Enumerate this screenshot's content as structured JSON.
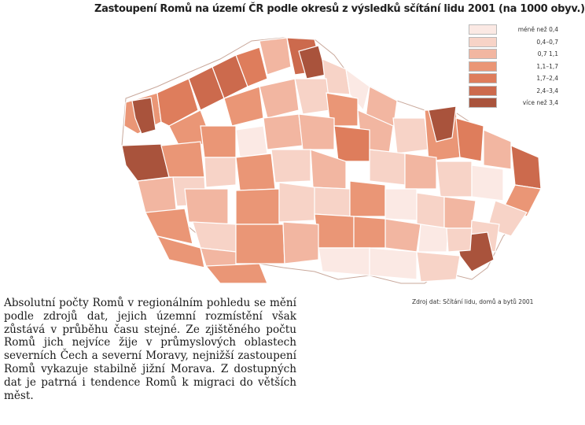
{
  "title": "Zastoupení Romů na území ČR podle okresů z výsledků sčítání lidu 2001 (na 1000 obyv.)",
  "legend": [
    {
      "label": "méně než 0,4",
      "color": "#fbe9e4"
    },
    {
      "label": "0,4–0,7",
      "color": "#f7d3c7"
    },
    {
      "label": "0,7  1,1",
      "color": "#f2b6a1"
    },
    {
      "label": "1,1–1,7",
      "color": "#ea9676"
    },
    {
      "label": "1,7–2,4",
      "color": "#de7d5c"
    },
    {
      "label": "2,4–3,4",
      "color": "#cc6a4d"
    },
    {
      "label": "více než 3,4",
      "color": "#a9533c"
    }
  ],
  "source": "Zdroj dat: Sčítání lidu, domů a bytů 2001",
  "text": "Absolutní počty Romů v regionálním pohledu se mění podle zdrojů dat, jejich územní rozmístění však zůstává v průběhu času stejné. Ze zjištěného počtu Romů jich nejvíce žije v průmyslových oblastech severních Čech a severní Moravy, nejnižší zastoupení Romů vykazuje stabilně jižní Morava. Z dostupných dat je patrná i tendence Romů k migraci do větších měst."
}
